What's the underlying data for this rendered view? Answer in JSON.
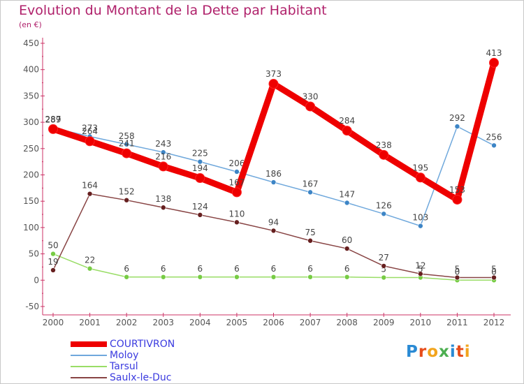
{
  "title": "Evolution du Montant de la Dette par Habitant",
  "unit": "(en €)",
  "logo": {
    "text": "Proxiti",
    "letter_colors": [
      "#2a8ad4",
      "#e74c1a",
      "#f2a41c",
      "#4caf50",
      "#2a8ad4",
      "#e74c1a",
      "#f2a41c"
    ]
  },
  "chart_data": {
    "type": "line",
    "title": "Evolution du Montant de la Dette par Habitant",
    "ylabel": "(en €)",
    "xlabel": "",
    "ylim": [
      -50,
      450
    ],
    "yticks": [
      -50,
      0,
      50,
      100,
      150,
      200,
      250,
      300,
      350,
      400,
      450
    ],
    "categories": [
      "2000",
      "2001",
      "2002",
      "2003",
      "2004",
      "2005",
      "2006",
      "2007",
      "2008",
      "2009",
      "2010",
      "2011",
      "2012"
    ],
    "grid": false,
    "legend_position": "bottom-left",
    "series": [
      {
        "name": "COURTIVRON",
        "color": "#ee0000",
        "point_color": "#ee0000",
        "thick": true,
        "values": [
          287,
          264,
          241,
          216,
          194,
          167,
          373,
          330,
          284,
          238,
          195,
          153,
          413
        ]
      },
      {
        "name": "Moloy",
        "color": "#6fa8dc",
        "point_color": "#3d85c6",
        "thick": false,
        "values": [
          289,
          273,
          258,
          243,
          225,
          206,
          186,
          167,
          147,
          126,
          103,
          292,
          256
        ]
      },
      {
        "name": "Tarsul",
        "color": "#99dd66",
        "point_color": "#77cc44",
        "thick": false,
        "values": [
          50,
          22,
          6,
          6,
          6,
          6,
          6,
          6,
          6,
          5,
          5,
          0,
          0
        ]
      },
      {
        "name": "Saulx-le-Duc",
        "color": "#884444",
        "point_color": "#661f1f",
        "thick": false,
        "values": [
          19,
          164,
          152,
          138,
          124,
          110,
          94,
          75,
          60,
          27,
          12,
          5,
          5
        ]
      }
    ]
  }
}
